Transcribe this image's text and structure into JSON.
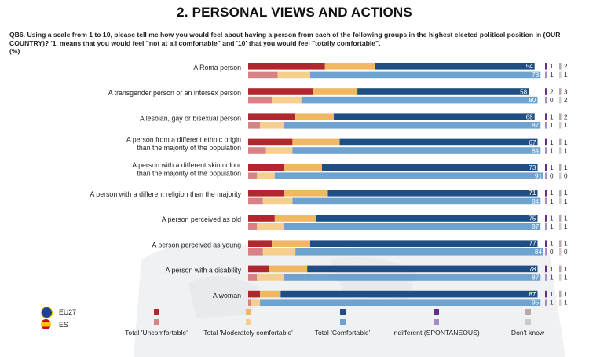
{
  "title": "2. PERSONAL VIEWS AND ACTIONS",
  "question": "QB6. Using a scale from 1 to 10, please tell me how you would feel about having a person from each of the following groups in the highest elected political position in (OUR COUNTRY)? '1' means that you would feel \"not at all comfortable\" and '10' that you would feel \"totally comfortable\".",
  "unit": "(%)",
  "legend": {
    "countries": [
      {
        "name": "EU27",
        "flag": "eu-flag-icon"
      },
      {
        "name": "ES",
        "flag": "spain-flag-icon"
      }
    ],
    "categories": [
      {
        "label": "Total 'Uncomfortable'",
        "eu_color": "#b0272e",
        "es_color": "#d98285"
      },
      {
        "label": "Total 'Moderately comfortable'",
        "eu_color": "#f0b860",
        "es_color": "#f6cf8f"
      },
      {
        "label": "Total 'Comfortable'",
        "eu_color": "#1f4e85",
        "es_color": "#6fa3cf"
      },
      {
        "label": "Indifferent (SPONTANEOUS)",
        "eu_color": "#6a2c8c",
        "es_color": "#a78bc8"
      },
      {
        "label": "Don't know",
        "eu_color": "#b5aaa5",
        "es_color": "#cfcac7"
      }
    ]
  },
  "chart_data": {
    "type": "bar",
    "stacked": true,
    "orientation": "horizontal",
    "categories": [
      [
        "A Roma person"
      ],
      [
        "A transgender person or an intersex person"
      ],
      [
        "A lesbian, gay or bisexual person"
      ],
      [
        "A person from a different ethnic origin",
        "than the majority of the population"
      ],
      [
        "A person with a different skin colour",
        "than the majority of the population"
      ],
      [
        "A person with a different religion than the majority"
      ],
      [
        "A person perceived as old"
      ],
      [
        "A person perceived as young"
      ],
      [
        "A person with a disability"
      ],
      [
        "A woman"
      ]
    ],
    "series": [
      {
        "name": "EU27",
        "uncomfortable": [
          26,
          22,
          16,
          15,
          12,
          12,
          9,
          8,
          7,
          4
        ],
        "moderately": [
          17,
          15,
          13,
          16,
          13,
          15,
          14,
          13,
          13,
          7
        ],
        "comfortable": [
          54,
          58,
          68,
          67,
          73,
          71,
          75,
          77,
          78,
          87
        ],
        "indifferent": [
          1,
          2,
          1,
          1,
          1,
          1,
          1,
          1,
          1,
          1
        ],
        "dont_know": [
          2,
          3,
          2,
          1,
          1,
          1,
          1,
          1,
          1,
          1
        ]
      },
      {
        "name": "ES",
        "uncomfortable": [
          10,
          8,
          4,
          6,
          3,
          5,
          3,
          5,
          3,
          1
        ],
        "moderately": [
          11,
          10,
          8,
          9,
          6,
          10,
          9,
          11,
          9,
          3
        ],
        "comfortable": [
          78,
          80,
          87,
          84,
          91,
          84,
          87,
          84,
          87,
          95
        ],
        "indifferent": [
          1,
          0,
          1,
          1,
          0,
          1,
          1,
          0,
          1,
          1
        ],
        "dont_know": [
          1,
          2,
          1,
          1,
          0,
          1,
          1,
          0,
          1,
          1
        ]
      }
    ],
    "xlim": [
      0,
      100
    ],
    "legend_position": "bottom"
  }
}
